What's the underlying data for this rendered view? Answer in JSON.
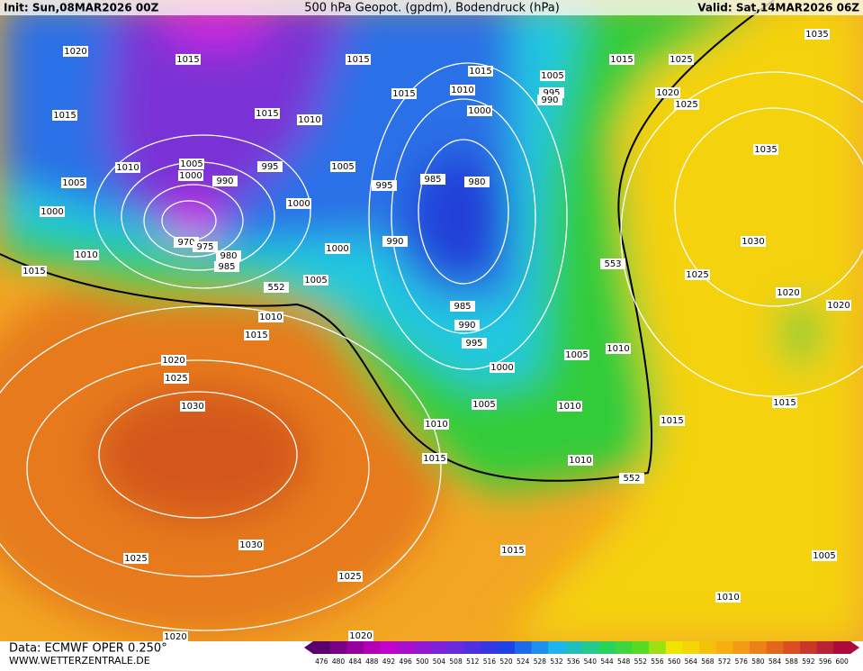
{
  "header": {
    "init": "Init: Sun,08MAR2026 00Z",
    "title": "500 hPa Geopot. (gpdm), Bodendruck (hPa)",
    "valid": "Valid: Sat,14MAR2026 06Z"
  },
  "isobar_labels": [
    "1020",
    "1015",
    "1015",
    "1015",
    "1005",
    "1015",
    "1025",
    "1035",
    "1015",
    "1015",
    "1010",
    "1015",
    "1010",
    "995",
    "990",
    "1000",
    "1020",
    "1025",
    "1010",
    "1005",
    "1000",
    "995",
    "1005",
    "990",
    "995",
    "985",
    "980",
    "1035",
    "1005",
    "1000",
    "1000",
    "970",
    "975",
    "980",
    "985",
    "990",
    "1000",
    "1010",
    "1015",
    "1005",
    "552",
    "553",
    "1030",
    "1025",
    "1020",
    "1020",
    "985",
    "990",
    "995",
    "1010",
    "1015",
    "1000",
    "1005",
    "1010",
    "1020",
    "1025",
    "1030",
    "1005",
    "1010",
    "1010",
    "1015",
    "1015",
    "1015",
    "1010",
    "552",
    "1030",
    "1025",
    "1025",
    "1015",
    "1005",
    "1010",
    "1020",
    "1020"
  ],
  "footer": {
    "data": "Data: ECMWF OPER 0.250°",
    "site": "WWW.WETTERZENTRALE.DE"
  },
  "colorbar": {
    "ticks": [
      476,
      480,
      484,
      488,
      492,
      496,
      500,
      504,
      508,
      512,
      516,
      520,
      524,
      528,
      532,
      536,
      540,
      544,
      548,
      552,
      556,
      560,
      564,
      568,
      572,
      576,
      580,
      584,
      588,
      592,
      596,
      600
    ]
  }
}
